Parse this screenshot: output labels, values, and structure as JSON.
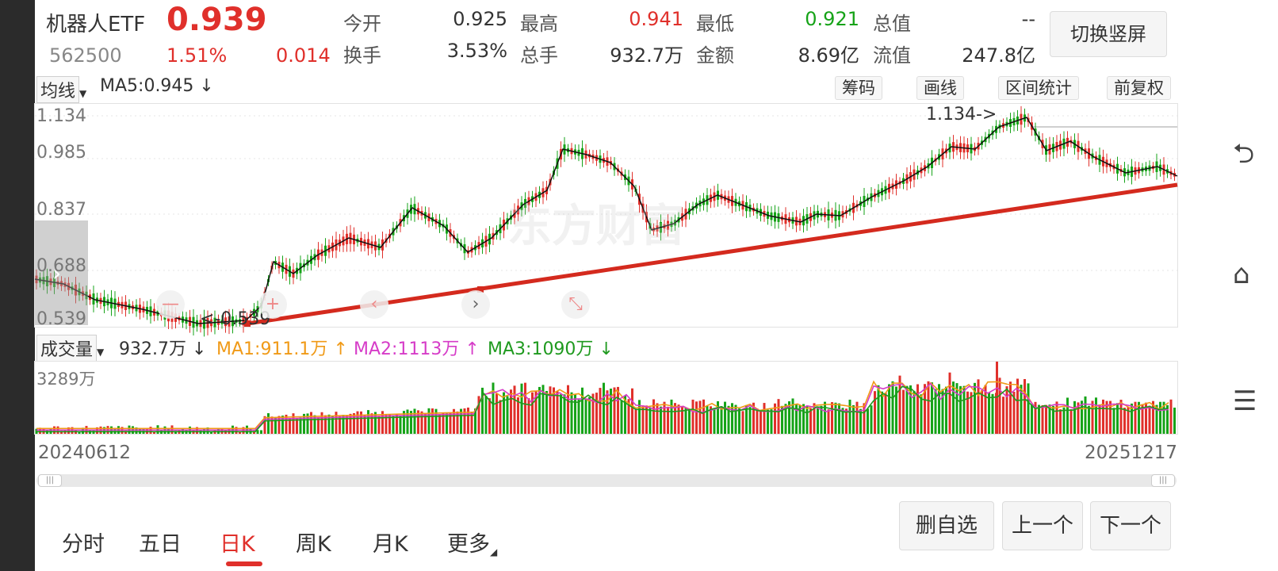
{
  "quote": {
    "name": "机器人ETF",
    "price": "0.939",
    "code": "562500",
    "change_pct": "1.51%",
    "change": "0.014",
    "stats": [
      {
        "label": "今开",
        "value": "0.925"
      },
      {
        "label": "最高",
        "value": "0.941"
      },
      {
        "label": "最低",
        "value": "0.921"
      },
      {
        "label": "总值",
        "value": "--"
      },
      {
        "label": "换手",
        "value": "3.53%"
      },
      {
        "label": "总手",
        "value": "932.7万"
      },
      {
        "label": "金额",
        "value": "8.69亿"
      },
      {
        "label": "流值",
        "value": "247.8亿"
      }
    ],
    "switch_btn": "切换竖屏"
  },
  "toolbar": {
    "ma_select": "均线",
    "ma5": "MA5:0.945",
    "ma5_arrow": "↓",
    "buttons": [
      "筹码",
      "画线",
      "区间统计",
      "前复权"
    ]
  },
  "price_chart": {
    "y_ticks": [
      "1.134",
      "0.985",
      "0.837",
      "0.688",
      "0.539"
    ],
    "max_label": "1.134->",
    "min_label": "<-0.539",
    "watermark": "东方财富"
  },
  "volume": {
    "select": "成交量",
    "value": "932.7万",
    "value_arrow": "↓",
    "ma1": "MA1:911.1万",
    "ma1_arrow": "↑",
    "ma2": "MA2:1113万",
    "ma2_arrow": "↑",
    "ma3": "MA3:1090万",
    "ma3_arrow": "↓",
    "max_label": "3289万"
  },
  "dates": {
    "start": "20240612",
    "end": "20251217"
  },
  "tabs": [
    "分时",
    "五日",
    "日K",
    "周K",
    "月K",
    "更多"
  ],
  "active_tab": 2,
  "bottom_buttons": [
    "删自选",
    "上一个",
    "下一个"
  ],
  "colors": {
    "up": "#e0302b",
    "down": "#16a318",
    "trend": "#d42a1e",
    "ma1": "#f09a17",
    "ma2": "#d63cc8",
    "ma3": "#1f9a1f"
  }
}
